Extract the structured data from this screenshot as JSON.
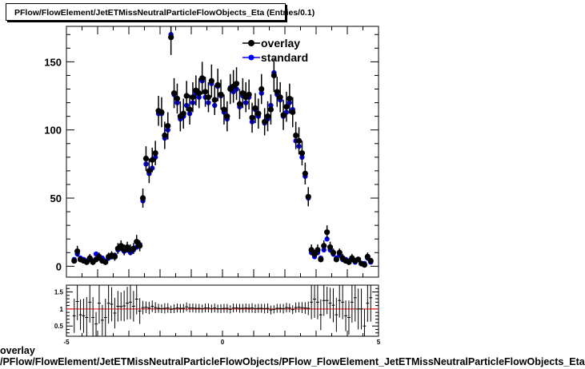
{
  "title": "PFlow/FlowElement/JetETMissNeutralParticleFlowObjects_Eta (Entries/0.1)",
  "caption": {
    "line1": "overlay",
    "line2": "/PFlow/FlowElement/JetETMissNeutralParticleFlowObjects/PFlow_FlowElement_JetETMissNeutralParticleFlowObjects_Eta"
  },
  "colors": {
    "overlay": "#000000",
    "standard": "#0000ff",
    "ratio_line": "#ff0000"
  },
  "chart_data": [
    {
      "type": "scatter",
      "xlim": [
        -5,
        5
      ],
      "ylim": [
        -8,
        176
      ],
      "yticks": [
        0,
        50,
        100,
        150
      ],
      "legend_position": "top-right",
      "series": [
        {
          "name": "overlay",
          "x": [
            -4.75,
            -4.65,
            -4.55,
            -4.45,
            -4.35,
            -4.25,
            -4.15,
            -4.05,
            -3.95,
            -3.85,
            -3.75,
            -3.65,
            -3.55,
            -3.45,
            -3.35,
            -3.25,
            -3.15,
            -3.05,
            -2.95,
            -2.85,
            -2.75,
            -2.65,
            -2.55,
            -2.45,
            -2.35,
            -2.25,
            -2.15,
            -2.05,
            -1.95,
            -1.85,
            -1.75,
            -1.65,
            -1.55,
            -1.45,
            -1.35,
            -1.25,
            -1.15,
            -1.05,
            -0.95,
            -0.85,
            -0.75,
            -0.65,
            -0.55,
            -0.45,
            -0.35,
            -0.25,
            -0.15,
            -0.05,
            0.05,
            0.15,
            0.25,
            0.35,
            0.45,
            0.55,
            0.65,
            0.75,
            0.85,
            0.95,
            1.05,
            1.15,
            1.25,
            1.35,
            1.45,
            1.55,
            1.65,
            1.75,
            1.85,
            1.95,
            2.05,
            2.15,
            2.25,
            2.35,
            2.45,
            2.55,
            2.65,
            2.75,
            2.85,
            2.95,
            3.05,
            3.15,
            3.25,
            3.35,
            3.45,
            3.55,
            3.65,
            3.75,
            3.85,
            3.95,
            4.05,
            4.15,
            4.25,
            4.35,
            4.45,
            4.55,
            4.65,
            4.75
          ],
          "y": [
            4,
            11,
            5,
            4,
            3,
            6,
            3,
            5,
            7,
            4,
            3,
            7,
            8,
            7,
            13,
            15,
            12,
            14,
            12,
            13,
            18,
            15,
            50,
            79,
            70,
            78,
            83,
            114,
            113,
            96,
            103,
            168,
            127,
            123,
            110,
            112,
            125,
            115,
            124,
            129,
            127,
            138,
            128,
            124,
            136,
            122,
            133,
            126,
            115,
            110,
            130,
            132,
            134,
            119,
            127,
            124,
            126,
            109,
            116,
            112,
            130,
            106,
            110,
            115,
            140,
            128,
            124,
            111,
            117,
            123,
            113,
            96,
            92,
            83,
            68,
            51,
            12,
            9,
            12,
            5,
            15,
            25,
            14,
            10,
            5,
            10,
            6,
            4,
            3,
            6,
            4,
            5,
            2,
            1,
            7,
            4
          ],
          "errors": [
            2,
            4,
            2,
            2,
            2,
            3,
            2,
            2,
            3,
            2,
            2,
            3,
            3,
            3,
            4,
            4,
            4,
            4,
            4,
            4,
            5,
            4,
            7,
            9,
            9,
            9,
            9,
            11,
            11,
            10,
            10,
            13,
            11,
            11,
            11,
            11,
            11,
            11,
            11,
            11,
            11,
            12,
            11,
            11,
            12,
            11,
            12,
            11,
            11,
            11,
            11,
            12,
            12,
            11,
            11,
            11,
            11,
            11,
            11,
            11,
            11,
            10,
            11,
            11,
            12,
            11,
            11,
            11,
            11,
            11,
            11,
            10,
            10,
            9,
            8,
            7,
            4,
            3,
            4,
            2,
            4,
            5,
            4,
            3,
            2,
            3,
            3,
            2,
            2,
            3,
            2,
            2,
            2,
            1,
            3,
            2
          ]
        },
        {
          "name": "standard",
          "x": [
            -4.75,
            -4.65,
            -4.55,
            -4.45,
            -4.35,
            -4.25,
            -4.15,
            -4.05,
            -3.95,
            -3.85,
            -3.75,
            -3.65,
            -3.55,
            -3.45,
            -3.35,
            -3.25,
            -3.15,
            -3.05,
            -2.95,
            -2.85,
            -2.75,
            -2.65,
            -2.55,
            -2.45,
            -2.35,
            -2.25,
            -2.15,
            -2.05,
            -1.95,
            -1.85,
            -1.75,
            -1.65,
            -1.55,
            -1.45,
            -1.35,
            -1.25,
            -1.15,
            -1.05,
            -0.95,
            -0.85,
            -0.75,
            -0.65,
            -0.55,
            -0.45,
            -0.35,
            -0.25,
            -0.15,
            -0.05,
            0.05,
            0.15,
            0.25,
            0.35,
            0.45,
            0.55,
            0.65,
            0.75,
            0.85,
            0.95,
            1.05,
            1.15,
            1.25,
            1.35,
            1.45,
            1.55,
            1.65,
            1.75,
            1.85,
            1.95,
            2.05,
            2.15,
            2.25,
            2.35,
            2.45,
            2.55,
            2.65,
            2.75,
            2.85,
            2.95,
            3.05,
            3.15,
            3.25,
            3.35,
            3.45,
            3.55,
            3.65,
            3.75,
            3.85,
            3.95,
            4.05,
            4.15,
            4.25,
            4.35,
            4.45,
            4.55,
            4.65,
            4.75
          ],
          "y": [
            5,
            9,
            6,
            5,
            4,
            5,
            4,
            9,
            6,
            6,
            4,
            6,
            7,
            8,
            12,
            14,
            11,
            12,
            10,
            12,
            14,
            16,
            48,
            75,
            68,
            72,
            80,
            112,
            112,
            94,
            100,
            170,
            126,
            120,
            108,
            110,
            118,
            112,
            120,
            127,
            124,
            136,
            124,
            120,
            134,
            118,
            132,
            125,
            113,
            108,
            131,
            128,
            130,
            117,
            125,
            120,
            124,
            106,
            115,
            110,
            127,
            105,
            108,
            118,
            142,
            126,
            122,
            110,
            113,
            120,
            115,
            92,
            88,
            80,
            66,
            50,
            10,
            7,
            10,
            6,
            12,
            20,
            12,
            9,
            6,
            8,
            5,
            5,
            4,
            5,
            3,
            5,
            2,
            2,
            6,
            3
          ]
        }
      ]
    },
    {
      "type": "scatter",
      "xlim": [
        -5,
        5
      ],
      "ylim": [
        0.2,
        1.7
      ],
      "xticks": [
        -5,
        0,
        5
      ],
      "yticks": [
        0.5,
        1,
        1.5
      ],
      "reference_line": 1,
      "series": [
        {
          "name": "ratio",
          "x": [
            -4.75,
            -4.65,
            -4.55,
            -4.45,
            -4.35,
            -4.25,
            -4.15,
            -4.05,
            -3.95,
            -3.85,
            -3.75,
            -3.65,
            -3.55,
            -3.45,
            -3.35,
            -3.25,
            -3.15,
            -3.05,
            -2.95,
            -2.85,
            -2.75,
            -2.65,
            -2.55,
            -2.45,
            -2.35,
            -2.25,
            -2.15,
            -2.05,
            -1.95,
            -1.85,
            -1.75,
            -1.65,
            -1.55,
            -1.45,
            -1.35,
            -1.25,
            -1.15,
            -1.05,
            -0.95,
            -0.85,
            -0.75,
            -0.65,
            -0.55,
            -0.45,
            -0.35,
            -0.25,
            -0.15,
            -0.05,
            0.05,
            0.15,
            0.25,
            0.35,
            0.45,
            0.55,
            0.65,
            0.75,
            0.85,
            0.95,
            1.05,
            1.15,
            1.25,
            1.35,
            1.45,
            1.55,
            1.65,
            1.75,
            1.85,
            1.95,
            2.05,
            2.15,
            2.25,
            2.35,
            2.45,
            2.55,
            2.65,
            2.75,
            2.85,
            2.95,
            3.05,
            3.15,
            3.25,
            3.35,
            3.45,
            3.55,
            3.65,
            3.75,
            3.85,
            3.95,
            4.05,
            4.15,
            4.25,
            4.35,
            4.45,
            4.55,
            4.65,
            4.75
          ],
          "y": [
            0.8,
            1.22,
            0.83,
            0.8,
            0.75,
            1.2,
            0.75,
            0.56,
            1.17,
            0.67,
            0.75,
            1.17,
            1.14,
            0.88,
            1.08,
            1.07,
            1.09,
            1.17,
            1.2,
            1.08,
            1.29,
            0.94,
            1.04,
            1.05,
            1.03,
            1.08,
            1.04,
            1.02,
            1.01,
            1.02,
            1.03,
            0.99,
            1.01,
            1.03,
            1.02,
            1.02,
            1.06,
            1.03,
            1.03,
            1.02,
            1.02,
            1.01,
            1.03,
            1.03,
            1.01,
            1.03,
            1.01,
            1.01,
            1.02,
            1.02,
            0.99,
            1.03,
            1.03,
            1.02,
            1.02,
            1.03,
            1.02,
            1.03,
            1.01,
            1.02,
            1.02,
            1.01,
            1.02,
            0.97,
            0.99,
            1.02,
            1.02,
            1.01,
            1.04,
            1.03,
            0.98,
            1.04,
            1.05,
            1.04,
            1.03,
            1.02,
            1.2,
            1.29,
            1.2,
            0.83,
            1.25,
            1.25,
            1.17,
            1.11,
            0.83,
            1.25,
            1.2,
            0.8,
            0.75,
            1.2,
            1.33,
            1,
            1,
            0.5,
            1.17,
            1.33
          ],
          "errors": [
            0.5,
            0.55,
            0.45,
            0.5,
            0.6,
            0.6,
            0.6,
            0.35,
            0.6,
            0.45,
            0.55,
            0.6,
            0.5,
            0.45,
            0.45,
            0.42,
            0.45,
            0.48,
            0.5,
            0.45,
            0.45,
            0.38,
            0.2,
            0.17,
            0.18,
            0.17,
            0.16,
            0.13,
            0.13,
            0.15,
            0.14,
            0.11,
            0.13,
            0.13,
            0.13,
            0.13,
            0.13,
            0.13,
            0.13,
            0.13,
            0.13,
            0.12,
            0.13,
            0.13,
            0.12,
            0.13,
            0.12,
            0.13,
            0.13,
            0.13,
            0.12,
            0.13,
            0.12,
            0.13,
            0.13,
            0.13,
            0.13,
            0.14,
            0.13,
            0.13,
            0.13,
            0.14,
            0.14,
            0.13,
            0.12,
            0.13,
            0.13,
            0.14,
            0.14,
            0.13,
            0.13,
            0.15,
            0.15,
            0.16,
            0.17,
            0.2,
            0.5,
            0.55,
            0.5,
            0.45,
            0.45,
            0.4,
            0.45,
            0.5,
            0.5,
            0.5,
            0.5,
            0.45,
            0.5,
            0.6,
            0.7,
            0.6,
            0.6,
            0.5,
            0.55,
            0.7
          ]
        }
      ]
    }
  ]
}
